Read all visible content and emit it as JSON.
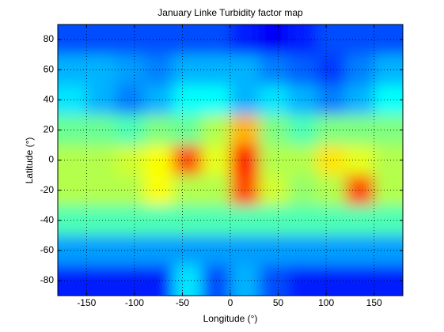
{
  "chart_data": {
    "type": "heatmap",
    "title": "January Linke Turbidity factor map",
    "xlabel": "Longitude (°)",
    "ylabel": "Latitude (°)",
    "xlim": [
      -180,
      180
    ],
    "ylim": [
      -90,
      90
    ],
    "xticks": [
      -150,
      -100,
      -50,
      0,
      50,
      100,
      150
    ],
    "yticks": [
      -80,
      -60,
      -40,
      -20,
      0,
      20,
      40,
      60,
      80
    ],
    "grid": true,
    "colormap": "jet",
    "clim": [
      0,
      1
    ],
    "z": [
      [
        0.2,
        0.2,
        0.2,
        0.2,
        0.2,
        0.2,
        0.15,
        0.12,
        0.15,
        0.2,
        0.2,
        0.2
      ],
      [
        0.3,
        0.3,
        0.28,
        0.25,
        0.3,
        0.3,
        0.3,
        0.25,
        0.22,
        0.18,
        0.25,
        0.3
      ],
      [
        0.35,
        0.3,
        0.25,
        0.3,
        0.38,
        0.38,
        0.3,
        0.35,
        0.3,
        0.25,
        0.3,
        0.38
      ],
      [
        0.48,
        0.48,
        0.45,
        0.5,
        0.48,
        0.55,
        0.7,
        0.5,
        0.45,
        0.5,
        0.5,
        0.5
      ],
      [
        0.55,
        0.55,
        0.58,
        0.62,
        0.8,
        0.6,
        0.85,
        0.55,
        0.55,
        0.65,
        0.6,
        0.55
      ],
      [
        0.55,
        0.55,
        0.55,
        0.62,
        0.55,
        0.55,
        0.8,
        0.58,
        0.52,
        0.55,
        0.8,
        0.55
      ],
      [
        0.45,
        0.45,
        0.45,
        0.45,
        0.45,
        0.45,
        0.45,
        0.45,
        0.45,
        0.45,
        0.45,
        0.45
      ],
      [
        0.28,
        0.28,
        0.28,
        0.28,
        0.28,
        0.28,
        0.28,
        0.28,
        0.28,
        0.28,
        0.28,
        0.28
      ],
      [
        0.15,
        0.15,
        0.15,
        0.15,
        0.35,
        0.2,
        0.3,
        0.2,
        0.15,
        0.15,
        0.15,
        0.15
      ]
    ]
  }
}
